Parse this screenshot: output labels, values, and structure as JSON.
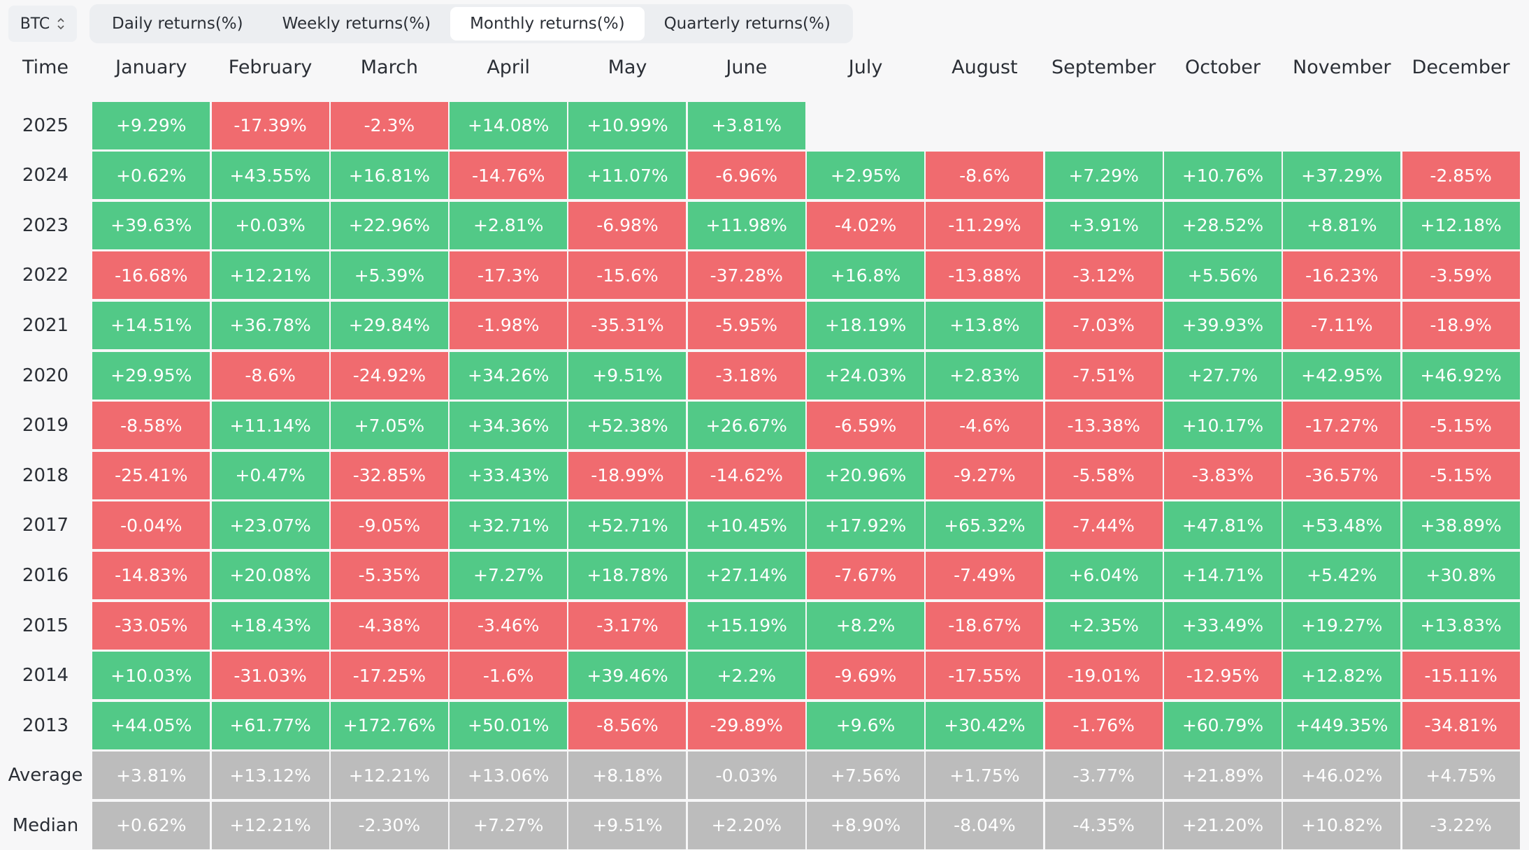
{
  "asset": {
    "label": "BTC"
  },
  "tabs": [
    {
      "label": "Daily returns(%)",
      "active": false
    },
    {
      "label": "Weekly returns(%)",
      "active": false
    },
    {
      "label": "Monthly returns(%)",
      "active": true
    },
    {
      "label": "Quarterly returns(%)",
      "active": false
    }
  ],
  "columns": [
    "Time",
    "January",
    "February",
    "March",
    "April",
    "May",
    "June",
    "July",
    "August",
    "September",
    "October",
    "November",
    "December"
  ],
  "rows": [
    {
      "label": "2025",
      "values": [
        "+9.29%",
        "-17.39%",
        "-2.3%",
        "+14.08%",
        "+10.99%",
        "+3.81%",
        "",
        "",
        "",
        "",
        "",
        ""
      ]
    },
    {
      "label": "2024",
      "values": [
        "+0.62%",
        "+43.55%",
        "+16.81%",
        "-14.76%",
        "+11.07%",
        "-6.96%",
        "+2.95%",
        "-8.6%",
        "+7.29%",
        "+10.76%",
        "+37.29%",
        "-2.85%"
      ]
    },
    {
      "label": "2023",
      "values": [
        "+39.63%",
        "+0.03%",
        "+22.96%",
        "+2.81%",
        "-6.98%",
        "+11.98%",
        "-4.02%",
        "-11.29%",
        "+3.91%",
        "+28.52%",
        "+8.81%",
        "+12.18%"
      ]
    },
    {
      "label": "2022",
      "values": [
        "-16.68%",
        "+12.21%",
        "+5.39%",
        "-17.3%",
        "-15.6%",
        "-37.28%",
        "+16.8%",
        "-13.88%",
        "-3.12%",
        "+5.56%",
        "-16.23%",
        "-3.59%"
      ]
    },
    {
      "label": "2021",
      "values": [
        "+14.51%",
        "+36.78%",
        "+29.84%",
        "-1.98%",
        "-35.31%",
        "-5.95%",
        "+18.19%",
        "+13.8%",
        "-7.03%",
        "+39.93%",
        "-7.11%",
        "-18.9%"
      ]
    },
    {
      "label": "2020",
      "values": [
        "+29.95%",
        "-8.6%",
        "-24.92%",
        "+34.26%",
        "+9.51%",
        "-3.18%",
        "+24.03%",
        "+2.83%",
        "-7.51%",
        "+27.7%",
        "+42.95%",
        "+46.92%"
      ]
    },
    {
      "label": "2019",
      "values": [
        "-8.58%",
        "+11.14%",
        "+7.05%",
        "+34.36%",
        "+52.38%",
        "+26.67%",
        "-6.59%",
        "-4.6%",
        "-13.38%",
        "+10.17%",
        "-17.27%",
        "-5.15%"
      ]
    },
    {
      "label": "2018",
      "values": [
        "-25.41%",
        "+0.47%",
        "-32.85%",
        "+33.43%",
        "-18.99%",
        "-14.62%",
        "+20.96%",
        "-9.27%",
        "-5.58%",
        "-3.83%",
        "-36.57%",
        "-5.15%"
      ]
    },
    {
      "label": "2017",
      "values": [
        "-0.04%",
        "+23.07%",
        "-9.05%",
        "+32.71%",
        "+52.71%",
        "+10.45%",
        "+17.92%",
        "+65.32%",
        "-7.44%",
        "+47.81%",
        "+53.48%",
        "+38.89%"
      ]
    },
    {
      "label": "2016",
      "values": [
        "-14.83%",
        "+20.08%",
        "-5.35%",
        "+7.27%",
        "+18.78%",
        "+27.14%",
        "-7.67%",
        "-7.49%",
        "+6.04%",
        "+14.71%",
        "+5.42%",
        "+30.8%"
      ]
    },
    {
      "label": "2015",
      "values": [
        "-33.05%",
        "+18.43%",
        "-4.38%",
        "-3.46%",
        "-3.17%",
        "+15.19%",
        "+8.2%",
        "-18.67%",
        "+2.35%",
        "+33.49%",
        "+19.27%",
        "+13.83%"
      ]
    },
    {
      "label": "2014",
      "values": [
        "+10.03%",
        "-31.03%",
        "-17.25%",
        "-1.6%",
        "+39.46%",
        "+2.2%",
        "-9.69%",
        "-17.55%",
        "-19.01%",
        "-12.95%",
        "+12.82%",
        "-15.11%"
      ]
    },
    {
      "label": "2013",
      "values": [
        "+44.05%",
        "+61.77%",
        "+172.76%",
        "+50.01%",
        "-8.56%",
        "-29.89%",
        "+9.6%",
        "+30.42%",
        "-1.76%",
        "+60.79%",
        "+449.35%",
        "-34.81%"
      ]
    }
  ],
  "stats": [
    {
      "label": "Average",
      "values": [
        "+3.81%",
        "+13.12%",
        "+12.21%",
        "+13.06%",
        "+8.18%",
        "-0.03%",
        "+7.56%",
        "+1.75%",
        "-3.77%",
        "+21.89%",
        "+46.02%",
        "+4.75%"
      ]
    },
    {
      "label": "Median",
      "values": [
        "+0.62%",
        "+12.21%",
        "-2.30%",
        "+7.27%",
        "+9.51%",
        "+2.20%",
        "+8.90%",
        "-8.04%",
        "-4.35%",
        "+21.20%",
        "+10.82%",
        "-3.22%"
      ]
    }
  ],
  "colors": {
    "positive": "#52c987",
    "negative": "#f06b6f",
    "stat": "#bcbcbc"
  }
}
